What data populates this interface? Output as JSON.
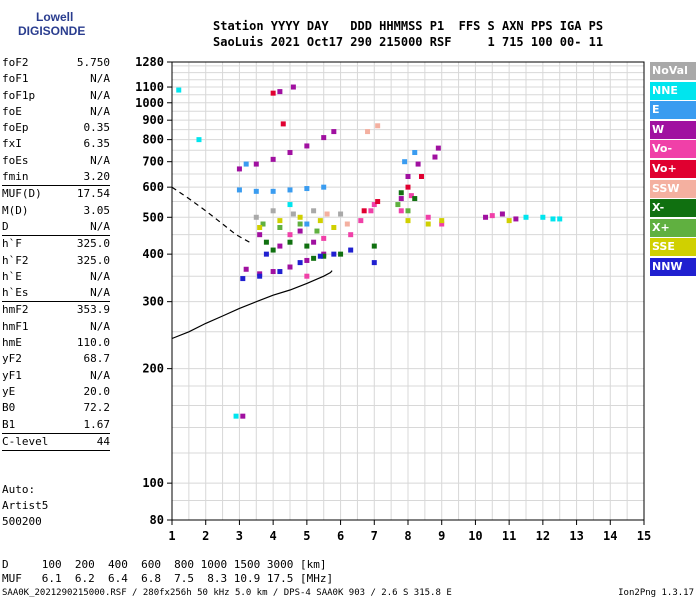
{
  "logo": {
    "line1": "Lowell",
    "line2": "DIGISONDE"
  },
  "header": {
    "line1": "Station YYYY DAY   DDD HHMMSS P1  FFS S AXN PPS IGA PS",
    "line2": "SaoLuis 2021 Oct17 290 215000 RSF     1 715 100 00- 11"
  },
  "params": [
    {
      "k": "foF2",
      "v": "5.750"
    },
    {
      "k": "foF1",
      "v": "N/A"
    },
    {
      "k": "foF1p",
      "v": "N/A"
    },
    {
      "k": "foE",
      "v": "N/A"
    },
    {
      "k": "foEp",
      "v": "0.35"
    },
    {
      "k": "fxI",
      "v": "6.35"
    },
    {
      "k": "foEs",
      "v": "N/A"
    },
    {
      "k": "fmin",
      "v": "3.20"
    },
    {
      "k": "MUF(D)",
      "v": "17.54"
    },
    {
      "k": "M(D)",
      "v": "3.05"
    },
    {
      "k": "D",
      "v": "N/A"
    },
    {
      "k": "h`F",
      "v": "325.0"
    },
    {
      "k": "h`F2",
      "v": "325.0"
    },
    {
      "k": "h`E",
      "v": "N/A"
    },
    {
      "k": "h`Es",
      "v": "N/A"
    },
    {
      "k": "hmF2",
      "v": "353.9"
    },
    {
      "k": "hmF1",
      "v": "N/A"
    },
    {
      "k": "hmE",
      "v": "110.0"
    },
    {
      "k": "yF2",
      "v": "68.7"
    },
    {
      "k": "yF1",
      "v": "N/A"
    },
    {
      "k": "yE",
      "v": "20.0"
    },
    {
      "k": "B0",
      "v": "72.2"
    },
    {
      "k": "B1",
      "v": "1.67"
    },
    {
      "k": "C-level",
      "v": "44"
    }
  ],
  "auto": {
    "l1": "Auto:",
    "l2": "Artist5",
    "l3": "500200"
  },
  "bottom": {
    "line1": "D     100  200  400  600  800 1000 1500 3000 [km]",
    "line2": "MUF   6.1  6.2  6.4  6.8  7.5  8.3 10.9 17.5 [MHz]"
  },
  "footer": {
    "left": "SAA0K_2021290215000.RSF / 280fx256h 50 kHz 5.0 km / DPS-4 SAA0K 903 / 2.6 S 315.8 E",
    "right": "Ion2Png 1.3.17"
  },
  "legend": [
    {
      "label": "NoVal",
      "color": "#a9a9a9"
    },
    {
      "label": "NNE",
      "color": "#00e5ee"
    },
    {
      "label": "E",
      "color": "#3a9cf0"
    },
    {
      "label": "W",
      "color": "#a010a0"
    },
    {
      "label": "Vo-",
      "color": "#f040a8"
    },
    {
      "label": "Vo+",
      "color": "#e00030"
    },
    {
      "label": "SSW",
      "color": "#f4b0a0"
    },
    {
      "label": "X-",
      "color": "#107010"
    },
    {
      "label": "X+",
      "color": "#60b040"
    },
    {
      "label": "SSE",
      "color": "#d0d000"
    },
    {
      "label": "NNW",
      "color": "#2020d0"
    }
  ],
  "chart_data": {
    "type": "scatter",
    "xlim": [
      1,
      15
    ],
    "ylim": [
      80,
      1280
    ],
    "y_scale": "log",
    "xticks": [
      1,
      2,
      3,
      4,
      5,
      6,
      7,
      8,
      9,
      10,
      11,
      12,
      13,
      14,
      15
    ],
    "yticks": [
      80,
      100,
      200,
      300,
      400,
      500,
      600,
      700,
      800,
      900,
      1000,
      1100,
      1280
    ],
    "grid": true,
    "legend_position": "right",
    "series": [
      {
        "legend": "W",
        "points": [
          [
            3.0,
            670
          ],
          [
            3.5,
            690
          ],
          [
            4.0,
            710
          ],
          [
            4.5,
            740
          ],
          [
            5.0,
            770
          ],
          [
            5.5,
            810
          ],
          [
            5.8,
            840
          ],
          [
            3.2,
            365
          ],
          [
            3.6,
            355
          ],
          [
            4.0,
            360
          ],
          [
            4.5,
            370
          ],
          [
            5.0,
            385
          ],
          [
            5.5,
            400
          ],
          [
            7.8,
            560
          ],
          [
            8.0,
            640
          ],
          [
            8.3,
            690
          ],
          [
            8.8,
            720
          ],
          [
            8.9,
            760
          ],
          [
            10.3,
            500
          ],
          [
            10.8,
            510
          ],
          [
            11.2,
            495
          ],
          [
            4.2,
            420
          ],
          [
            4.8,
            460
          ],
          [
            5.2,
            430
          ],
          [
            3.6,
            450
          ],
          [
            4.2,
            1070
          ],
          [
            4.6,
            1100
          ],
          [
            3.1,
            150
          ]
        ]
      },
      {
        "legend": "Vo-",
        "points": [
          [
            6.3,
            450
          ],
          [
            6.6,
            490
          ],
          [
            6.9,
            520
          ],
          [
            7.0,
            540
          ],
          [
            7.8,
            520
          ],
          [
            8.1,
            570
          ],
          [
            8.6,
            500
          ],
          [
            9.0,
            480
          ],
          [
            4.5,
            450
          ],
          [
            5.5,
            440
          ],
          [
            5.0,
            350
          ],
          [
            10.5,
            505
          ]
        ]
      },
      {
        "legend": "Vo+",
        "points": [
          [
            6.7,
            520
          ],
          [
            7.1,
            550
          ],
          [
            8.0,
            600
          ],
          [
            8.4,
            640
          ],
          [
            4.0,
            1060
          ],
          [
            4.3,
            880
          ]
        ]
      },
      {
        "legend": "E",
        "points": [
          [
            3.0,
            590
          ],
          [
            3.5,
            585
          ],
          [
            4.0,
            585
          ],
          [
            4.5,
            590
          ],
          [
            5.0,
            595
          ],
          [
            5.5,
            600
          ],
          [
            3.2,
            690
          ],
          [
            7.9,
            700
          ],
          [
            8.2,
            740
          ],
          [
            5.0,
            480
          ]
        ]
      },
      {
        "legend": "NNE",
        "points": [
          [
            12.0,
            500
          ],
          [
            12.3,
            495
          ],
          [
            12.5,
            495
          ],
          [
            11.5,
            500
          ],
          [
            1.8,
            800
          ],
          [
            1.2,
            1080
          ],
          [
            2.9,
            150
          ],
          [
            4.5,
            540
          ]
        ]
      },
      {
        "legend": "X-",
        "points": [
          [
            4.0,
            410
          ],
          [
            4.5,
            430
          ],
          [
            5.0,
            420
          ],
          [
            5.5,
            395
          ],
          [
            6.0,
            400
          ],
          [
            7.8,
            580
          ],
          [
            8.2,
            560
          ],
          [
            3.8,
            430
          ],
          [
            5.2,
            390
          ],
          [
            7.0,
            420
          ]
        ]
      },
      {
        "legend": "X+",
        "points": [
          [
            4.2,
            470
          ],
          [
            4.8,
            480
          ],
          [
            5.3,
            460
          ],
          [
            7.7,
            540
          ],
          [
            8.0,
            520
          ],
          [
            3.7,
            480
          ]
        ]
      },
      {
        "legend": "SSE",
        "points": [
          [
            3.6,
            470
          ],
          [
            4.2,
            490
          ],
          [
            4.8,
            500
          ],
          [
            5.4,
            490
          ],
          [
            8.0,
            490
          ],
          [
            8.6,
            480
          ],
          [
            9.0,
            490
          ],
          [
            11.0,
            490
          ],
          [
            5.8,
            470
          ]
        ]
      },
      {
        "legend": "NNW",
        "points": [
          [
            3.1,
            345
          ],
          [
            3.6,
            350
          ],
          [
            4.2,
            360
          ],
          [
            4.8,
            380
          ],
          [
            5.4,
            395
          ],
          [
            5.8,
            400
          ],
          [
            7.0,
            380
          ],
          [
            3.8,
            400
          ],
          [
            6.3,
            410
          ]
        ]
      },
      {
        "legend": "SSW",
        "points": [
          [
            6.8,
            840
          ],
          [
            7.1,
            870
          ],
          [
            6.2,
            480
          ],
          [
            5.6,
            510
          ]
        ]
      },
      {
        "legend": "NoVal",
        "points": [
          [
            4.0,
            520
          ],
          [
            4.6,
            510
          ],
          [
            5.2,
            520
          ],
          [
            3.5,
            500
          ],
          [
            6.0,
            510
          ]
        ]
      }
    ],
    "profile_line": {
      "x": [
        1.0,
        1.5,
        2.0,
        2.5,
        3.0,
        3.5,
        4.0,
        4.5,
        5.0,
        5.5,
        5.7,
        5.75
      ],
      "y": [
        240,
        250,
        263,
        275,
        288,
        300,
        312,
        322,
        335,
        350,
        358,
        362
      ]
    },
    "profile_dashed": {
      "x": [
        1.0,
        1.5,
        2.0,
        2.5,
        2.9,
        3.3
      ],
      "y": [
        600,
        560,
        520,
        480,
        450,
        430
      ]
    }
  }
}
